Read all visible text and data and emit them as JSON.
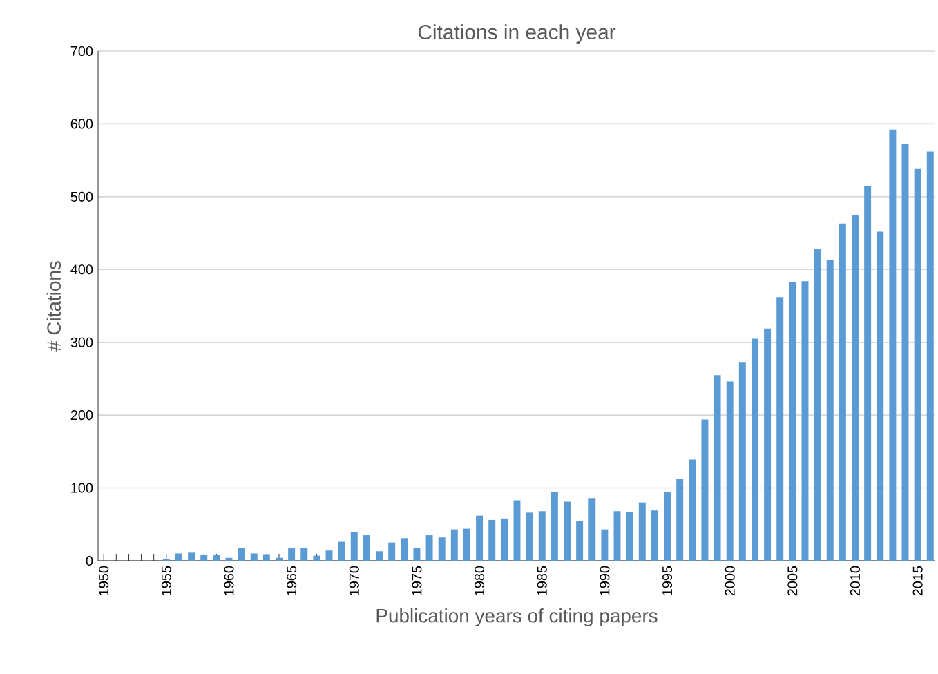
{
  "chart_data": {
    "type": "bar",
    "title": "Citations in each year",
    "xlabel": "Publication years of citing papers",
    "ylabel": "# Citations",
    "categories": [
      "1950",
      null,
      null,
      null,
      null,
      "1955",
      null,
      null,
      null,
      null,
      "1960",
      null,
      null,
      null,
      null,
      "1965",
      null,
      null,
      null,
      null,
      "1970",
      null,
      null,
      null,
      null,
      "1975",
      null,
      null,
      null,
      null,
      "1980",
      null,
      null,
      null,
      null,
      "1985",
      null,
      null,
      null,
      null,
      "1990",
      null,
      null,
      null,
      null,
      "1995",
      null,
      null,
      null,
      null,
      "2000",
      null,
      null,
      null,
      null,
      "2005",
      null,
      null,
      null,
      null,
      "2010",
      null,
      null,
      null,
      null,
      "2015",
      null
    ],
    "values": [
      0,
      0,
      0,
      0,
      0,
      2,
      10,
      11,
      8,
      8,
      4,
      17,
      10,
      9,
      4,
      17,
      17,
      7,
      14,
      26,
      39,
      35,
      13,
      25,
      31,
      18,
      35,
      32,
      43,
      44,
      62,
      56,
      58,
      83,
      66,
      68,
      94,
      81,
      54,
      86,
      43,
      68,
      67,
      80,
      69,
      94,
      112,
      139,
      194,
      255,
      246,
      273,
      305,
      319,
      362,
      383,
      384,
      428,
      413,
      463,
      475,
      514,
      452,
      592,
      572,
      538,
      562
    ],
    "color": "#5b9bd5",
    "ylim": [
      0,
      700
    ],
    "yticks": [
      0,
      100,
      200,
      300,
      400,
      500,
      600,
      700
    ],
    "grid": "y"
  }
}
